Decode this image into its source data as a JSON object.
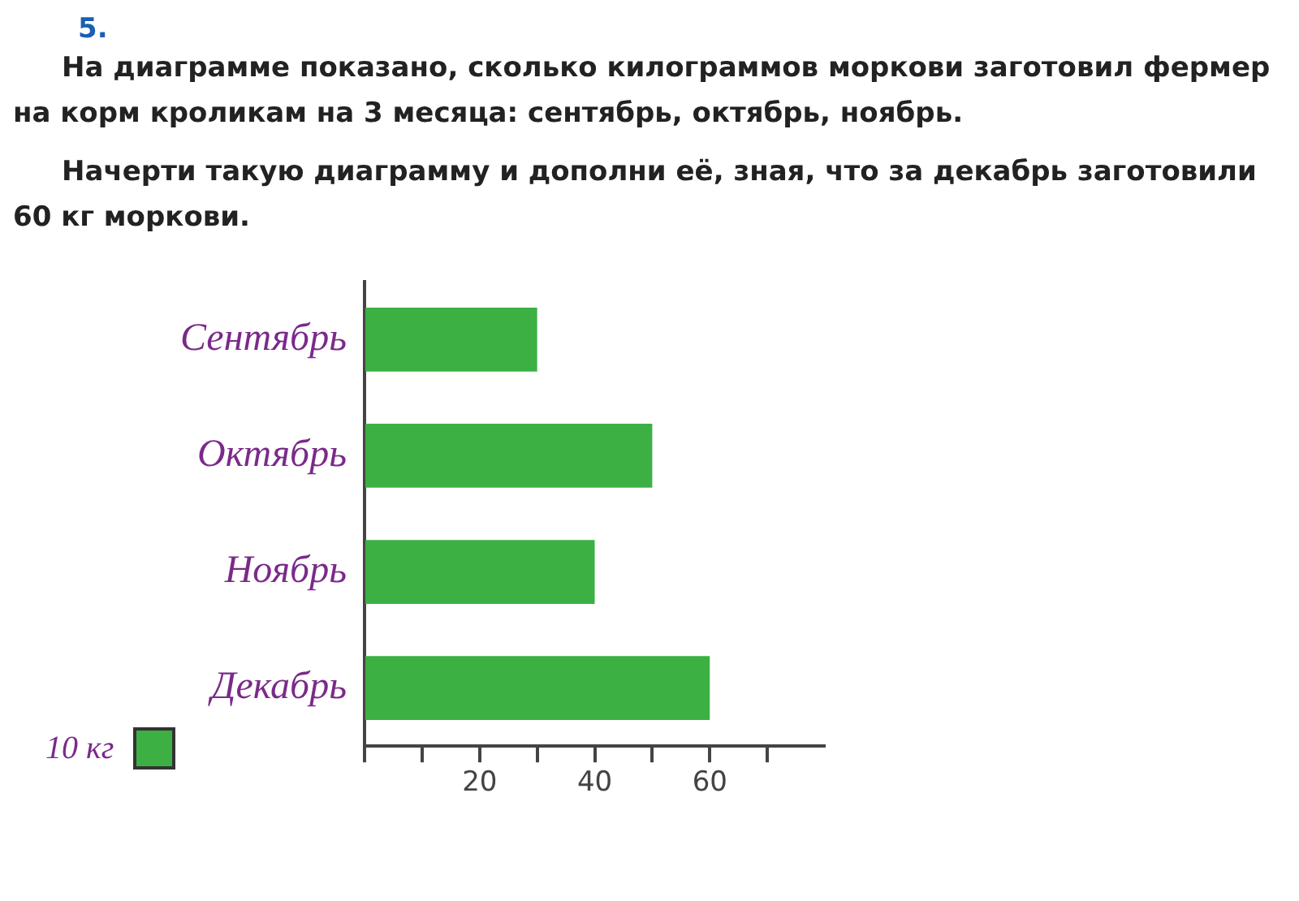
{
  "chart_data": {
    "type": "bar",
    "orientation": "horizontal",
    "title": "На диаграмме показано, сколько килограммов моркови заготовил фермер на корм кроликам на 3 месяца: сентябрь, октябрь, ноябрь.",
    "subtitle": "Начерти такую диаграмму и дополни её, зная, что за декабрь заготовили 60 кг моркови.",
    "annotations": [
      "5.",
      "10 кг"
    ],
    "categories": [
      "Сентябрь",
      "Октябрь",
      "Ноябрь",
      "Декабрь"
    ],
    "values": [
      30,
      50,
      40,
      60
    ],
    "color": "#3cb043",
    "xlim": [
      0,
      80
    ],
    "xticks": [
      {
        "value": 0,
        "label": null
      },
      {
        "value": 10,
        "label": null
      },
      20,
      {
        "value": 30,
        "label": null
      },
      40,
      {
        "value": 50,
        "label": null
      },
      60,
      {
        "value": 70,
        "label": null
      }
    ],
    "grid": false,
    "legend": false
  }
}
